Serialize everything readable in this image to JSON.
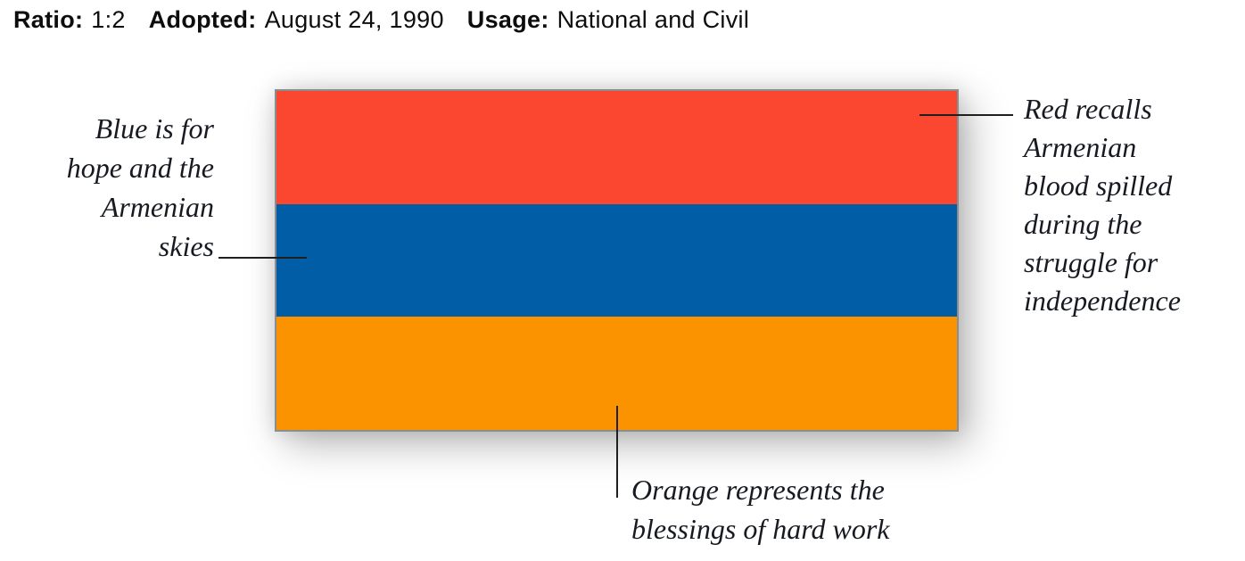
{
  "header": {
    "fields": [
      {
        "label": "Ratio:",
        "value": "1:2"
      },
      {
        "label": "Adopted:",
        "value": "August 24, 1990"
      },
      {
        "label": "Usage:",
        "value": "National and Civil"
      }
    ]
  },
  "flag": {
    "border_color": "#898e92",
    "stripes": [
      {
        "name": "red",
        "color": "#fb4630"
      },
      {
        "name": "blue",
        "color": "#005da6"
      },
      {
        "name": "orange",
        "color": "#fb9300"
      }
    ]
  },
  "annotations": {
    "blue": {
      "lines": [
        "Blue is for",
        "hope and the",
        "Armenian",
        "skies"
      ]
    },
    "red": {
      "lines": [
        "Red recalls",
        "Armenian",
        "blood spilled",
        "during the",
        "struggle for",
        "independence"
      ]
    },
    "orange": {
      "lines": [
        "Orange represents the",
        "blessings of hard work"
      ]
    }
  }
}
